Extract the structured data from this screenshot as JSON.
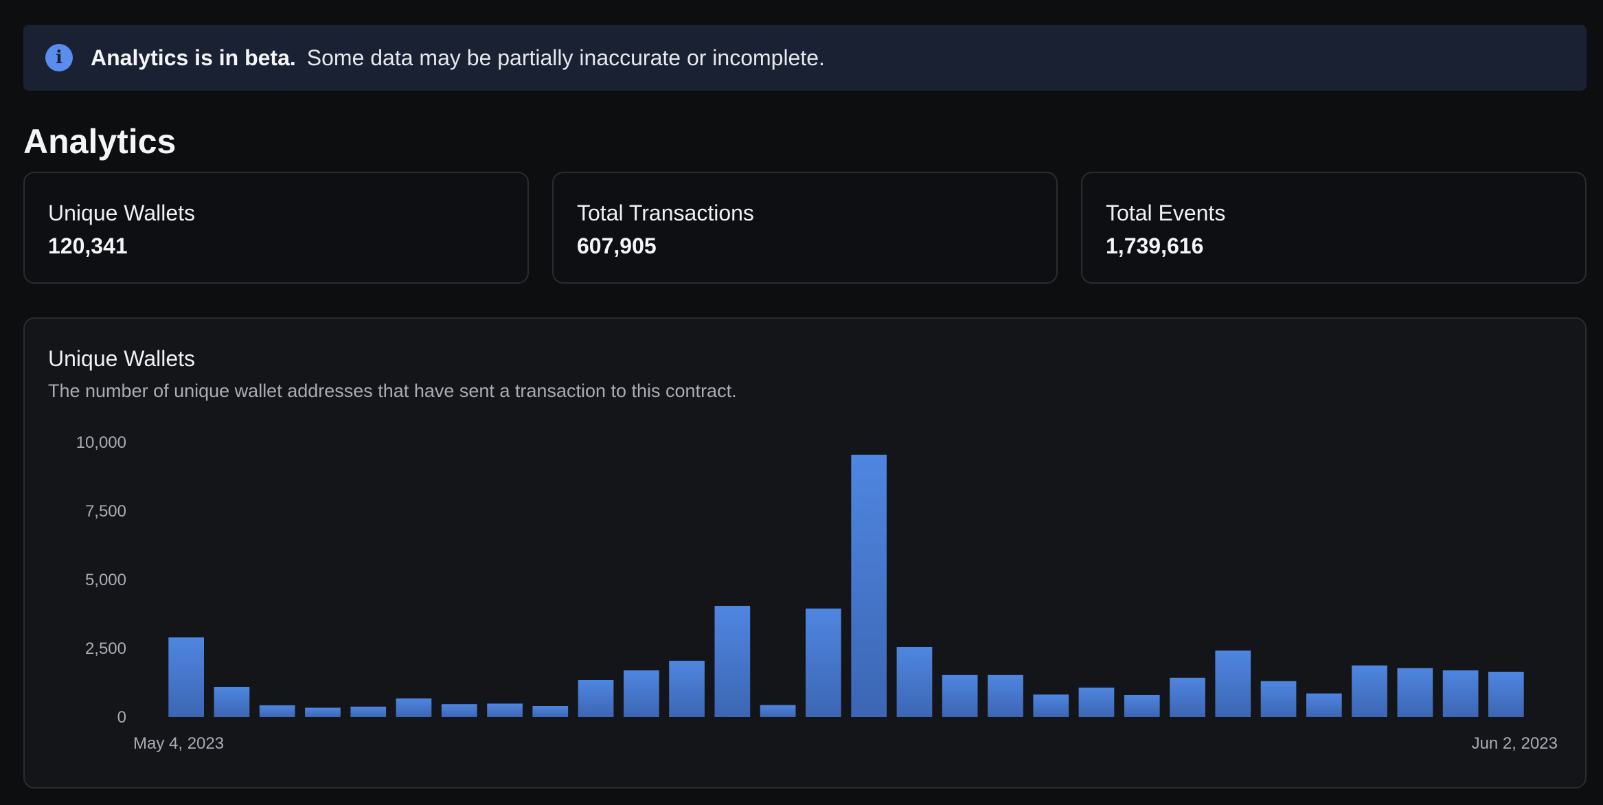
{
  "banner": {
    "icon": "info-icon",
    "strong": "Analytics is in beta.",
    "text": "Some data may be partially inaccurate or incomplete.",
    "accent_color": "#5b8def"
  },
  "page_title": "Analytics",
  "stats": [
    {
      "label": "Unique Wallets",
      "value": "120,341"
    },
    {
      "label": "Total Transactions",
      "value": "607,905"
    },
    {
      "label": "Total Events",
      "value": "1,739,616"
    }
  ],
  "chart": {
    "title": "Unique Wallets",
    "description": "The number of unique wallet addresses that have sent a transaction to this contract."
  },
  "chart_data": {
    "type": "bar",
    "title": "Unique Wallets",
    "xlabel": "",
    "ylabel": "",
    "ylim": [
      0,
      10000
    ],
    "yticks": [
      "0",
      "2,500",
      "5,000",
      "7,500",
      "10,000"
    ],
    "ytick_values": [
      0,
      2500,
      5000,
      7500,
      10000
    ],
    "x_start_label": "May 4, 2023",
    "x_end_label": "Jun 2, 2023",
    "values": [
      2900,
      1100,
      430,
      340,
      380,
      680,
      470,
      490,
      400,
      1350,
      1700,
      2050,
      4050,
      440,
      3950,
      9550,
      2550,
      1530,
      1530,
      820,
      1070,
      800,
      1430,
      2420,
      1310,
      860,
      1880,
      1780,
      1700,
      1650
    ],
    "bar_color": "#4a7bd6",
    "grid": false,
    "legend": "none"
  }
}
